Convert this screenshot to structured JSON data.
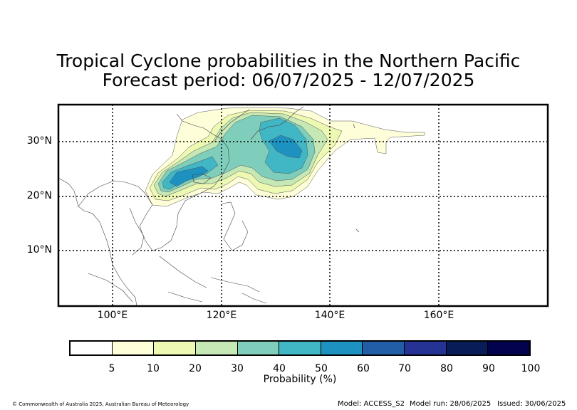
{
  "title": {
    "line1": "Tropical Cyclone probabilities in the Northern Pacific",
    "line2": "Forecast period: 06/07/2025 - 12/07/2025"
  },
  "map": {
    "lat_labels": [
      "30°N",
      "20°N",
      "10°N"
    ],
    "lon_labels": [
      "100°E",
      "120°E",
      "140°E",
      "160°E"
    ],
    "border_color": "#000000",
    "gridline_style": "dotted"
  },
  "colorbar": {
    "label": "Probability (%)",
    "ticks": [
      "5",
      "10",
      "20",
      "30",
      "40",
      "50",
      "60",
      "70",
      "80",
      "90",
      "100"
    ],
    "colors": [
      "#ffffff",
      "#fefed8",
      "#edf8b3",
      "#c6e8b5",
      "#7fcdbb",
      "#41b6c4",
      "#1d91c0",
      "#225ea8",
      "#253494",
      "#081d58",
      "#02024f"
    ]
  },
  "footer": {
    "copyright": "© Commonwealth of Australia 2025, Australian Bureau of Meteorology",
    "model": "Model: ACCESS_S2",
    "model_run": "Model run: 28/06/2025",
    "issued": "Issued: 30/06/2025"
  }
}
